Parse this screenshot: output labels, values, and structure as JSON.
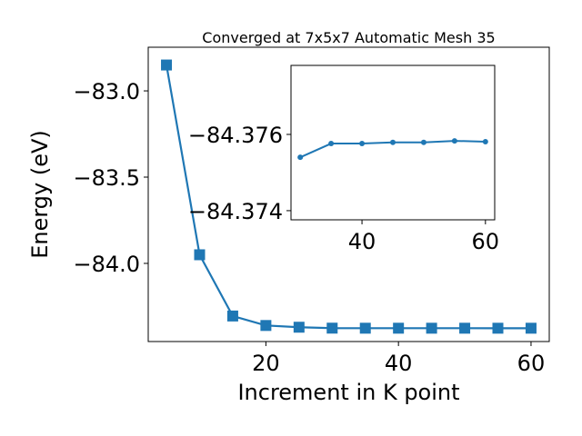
{
  "chart_data": [
    {
      "type": "line",
      "title": "Converged at 7x5x7 Automatic Mesh 35",
      "x_label": "Increment in K point",
      "y_label": "Energy (eV)",
      "x": [
        5,
        10,
        15,
        20,
        25,
        30,
        35,
        40,
        45,
        50,
        55,
        60
      ],
      "series": [
        {
          "color": "#1f77b4",
          "marker": "square",
          "values": [
            -82.85,
            -83.95,
            -84.305,
            -84.36,
            -84.37,
            -84.3754,
            -84.37576,
            -84.37576,
            -84.37579,
            -84.37579,
            -84.37583,
            -84.37581
          ]
        }
      ],
      "xlim": [
        2.25,
        62.75
      ],
      "ylim": [
        -84.453,
        -82.747
      ],
      "xticks": [
        20,
        40,
        60
      ],
      "yticks": [
        {
          "value": -83.0,
          "label": "−83.0"
        },
        {
          "value": -83.5,
          "label": "−83.5"
        },
        {
          "value": -84.0,
          "label": "−84.0"
        }
      ]
    },
    {
      "type": "line",
      "x": [
        30,
        35,
        40,
        45,
        50,
        55,
        60
      ],
      "series": [
        {
          "color": "#1f77b4",
          "marker": "circle",
          "values": [
            -84.3754,
            -84.37576,
            -84.37576,
            -84.37579,
            -84.37579,
            -84.37583,
            -84.37581
          ]
        }
      ],
      "xlim": [
        28.5,
        61.5
      ],
      "ylim": [
        -84.37376,
        -84.37781
      ],
      "xticks": [
        40,
        60
      ],
      "yticks": [
        {
          "value": -84.376,
          "label": "−84.376"
        },
        {
          "value": -84.374,
          "label": "−84.374"
        }
      ]
    }
  ]
}
